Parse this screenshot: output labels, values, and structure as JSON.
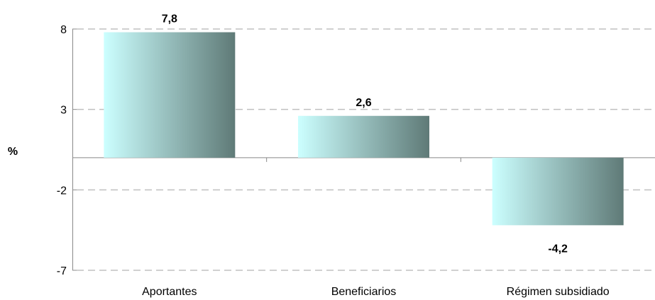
{
  "chart_data": {
    "type": "bar",
    "categories": [
      "Aportantes",
      "Beneficiarios",
      "Régimen subsidiado"
    ],
    "values": [
      7.8,
      2.6,
      -4.2
    ],
    "value_labels": [
      "7,8",
      "2,6",
      "-4,2"
    ],
    "ylabel": "%",
    "ylim": [
      -7,
      8
    ],
    "yticks": [
      8,
      3,
      -2,
      -7
    ],
    "ytick_labels": [
      "8",
      "3",
      "-2",
      "-7"
    ],
    "grid": true,
    "grid_style": "dashed",
    "bar_gradient": [
      "#ccffff",
      "#5f7a77"
    ]
  }
}
